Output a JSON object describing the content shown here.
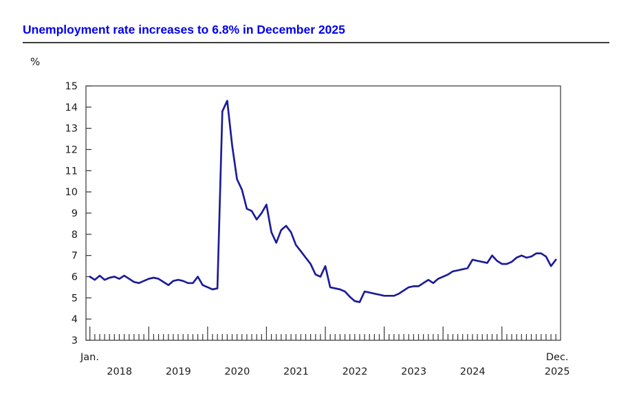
{
  "header": {
    "title": "Unemployment rate increases to 6.8% in December 2025",
    "title_color": "#0000EE"
  },
  "chart_data": {
    "type": "line",
    "title": "Unemployment rate increases to 6.8% in December 2025",
    "unit_label": "%",
    "ylabel": "%",
    "ylim": [
      3,
      15
    ],
    "y_ticks": [
      "3",
      "4",
      "5",
      "6",
      "7",
      "8",
      "9",
      "10",
      "11",
      "12",
      "13",
      "14",
      "15"
    ],
    "x_first_month_label": "Jan.",
    "x_last_month_label": "Dec.",
    "year_labels": [
      "2018",
      "2019",
      "2020",
      "2021",
      "2022",
      "2023",
      "2024"
    ],
    "end_year_label": "2025",
    "grid": "off",
    "legend": "none",
    "x_range_note": "monthly, January 2018 to December 2025",
    "line_color": "#1c1c99",
    "series": [
      {
        "name": "Unemployment rate (%)",
        "values": [
          6.0,
          5.85,
          6.05,
          5.85,
          5.95,
          6.0,
          5.9,
          6.05,
          5.9,
          5.75,
          5.7,
          5.8,
          5.9,
          5.95,
          5.9,
          5.75,
          5.6,
          5.8,
          5.85,
          5.8,
          5.7,
          5.7,
          6.0,
          5.6,
          5.5,
          5.4,
          5.45,
          13.8,
          14.3,
          12.2,
          10.6,
          10.1,
          9.2,
          9.1,
          8.7,
          9.0,
          9.4,
          8.1,
          7.6,
          8.2,
          8.4,
          8.1,
          7.5,
          7.2,
          6.9,
          6.6,
          6.1,
          6.0,
          6.5,
          5.5,
          5.45,
          5.4,
          5.3,
          5.05,
          4.85,
          4.8,
          5.3,
          5.25,
          5.2,
          5.15,
          5.1,
          5.1,
          5.1,
          5.2,
          5.35,
          5.5,
          5.55,
          5.55,
          5.7,
          5.85,
          5.7,
          5.9,
          6.0,
          6.1,
          6.25,
          6.3,
          6.35,
          6.4,
          6.8,
          6.75,
          6.7,
          6.65,
          7.0,
          6.75,
          6.6,
          6.6,
          6.7,
          6.9,
          7.0,
          6.9,
          6.95,
          7.1,
          7.1,
          6.95,
          6.5,
          6.8
        ]
      }
    ]
  }
}
